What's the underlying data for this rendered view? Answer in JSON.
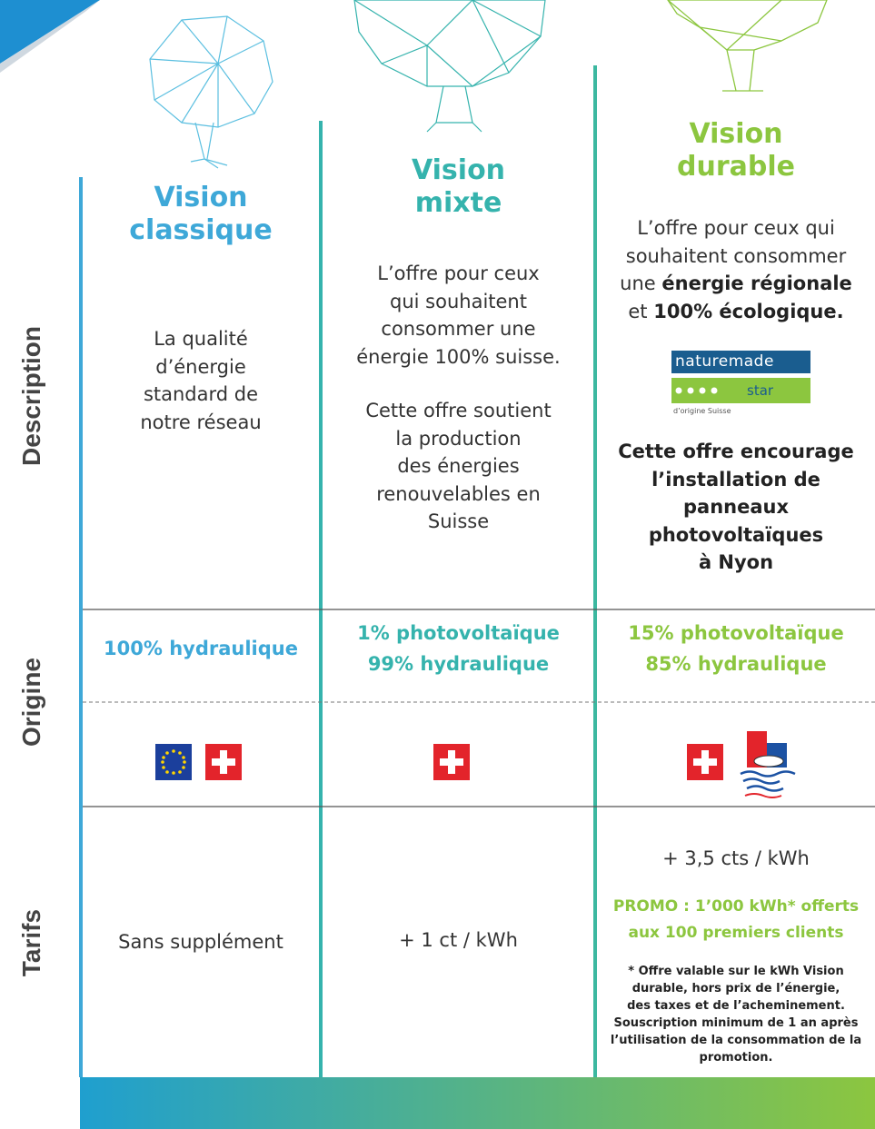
{
  "row_labels": [
    "Description",
    "Origine",
    "Tarifs"
  ],
  "columns": [
    {
      "title": [
        "Vision",
        "classique"
      ],
      "description": [
        "La qualité",
        "d’énergie",
        "standard de",
        "notre réseau"
      ],
      "origin": [
        "100% hydraulique"
      ],
      "tariff": "Sans supplément"
    },
    {
      "title": [
        "Vision",
        "mixte"
      ],
      "description": [
        [
          "L’offre pour ceux",
          "qui souhaitent",
          "consommer une",
          "énergie 100% suisse."
        ],
        [
          "Cette offre soutient",
          "la production",
          "des énergies",
          "renouvelables en",
          "Suisse"
        ]
      ],
      "origin": [
        "1% photovoltaïque",
        "99% hydraulique"
      ],
      "tariff": "+ 1 ct / kWh"
    },
    {
      "title": [
        "Vision",
        "durable"
      ],
      "description": [
        "L’offre pour ceux qui",
        "souhaitent consommer",
        [
          "une",
          "énergie régionale"
        ],
        [
          "et",
          "100% écologique."
        ]
      ],
      "label": {
        "name": "naturemade",
        "grade": "star",
        "subtitle": "d’origine Suisse"
      },
      "encouragement": [
        "Cette offre encourage",
        "l’installation de",
        "panneaux",
        "photovoltaïques",
        "à Nyon"
      ],
      "origin": [
        "15% photovoltaïque",
        "85% hydraulique"
      ],
      "tariff": "+ 3,5 cts / kWh",
      "promo": [
        "PROMO : 1’000 kWh* offerts",
        "aux 100 premiers clients"
      ],
      "footnote": [
        "* Offre valable sur le kWh Vision",
        "durable, hors prix de l’énergie,",
        "des taxes et de l’acheminement.",
        "Souscription minimum de 1 an après",
        "l’utilisation de la consommation de la",
        "promotion."
      ]
    }
  ]
}
